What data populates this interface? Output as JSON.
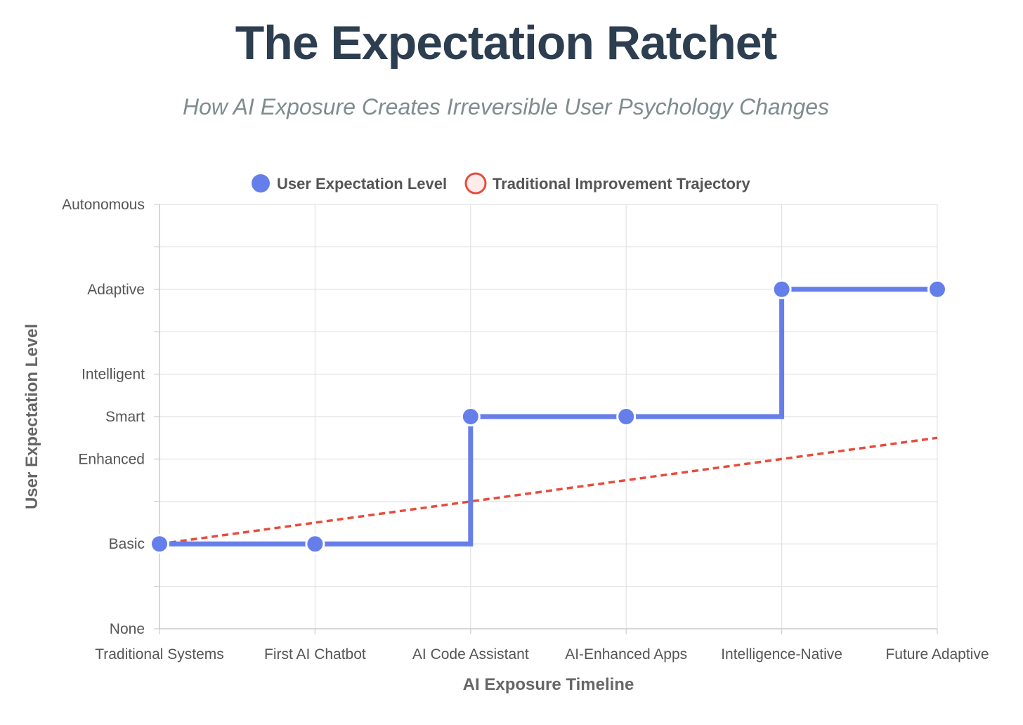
{
  "title": "The Expectation Ratchet",
  "subtitle": "How AI Exposure Creates Irreversible User Psychology Changes",
  "chart_data": {
    "type": "line",
    "categories": [
      "Traditional Systems",
      "First AI Chatbot",
      "AI Code Assistant",
      "AI-Enhanced Apps",
      "Intelligence-Native",
      "Future Adaptive"
    ],
    "x": [
      "Traditional Systems",
      "First AI Chatbot",
      "AI Code Assistant",
      "AI-Enhanced Apps",
      "Intelligence-Native",
      "Future Adaptive"
    ],
    "xlabel": "AI Exposure Timeline",
    "ylabel": "User Expectation Level",
    "ylim": [
      0,
      10
    ],
    "yticks": [
      {
        "value": 0,
        "label": "None"
      },
      {
        "value": 1,
        "label": ""
      },
      {
        "value": 2,
        "label": "Basic"
      },
      {
        "value": 3,
        "label": ""
      },
      {
        "value": 4,
        "label": "Enhanced"
      },
      {
        "value": 5,
        "label": "Smart"
      },
      {
        "value": 6,
        "label": "Intelligent"
      },
      {
        "value": 7,
        "label": ""
      },
      {
        "value": 8,
        "label": "Adaptive"
      },
      {
        "value": 9,
        "label": ""
      },
      {
        "value": 10,
        "label": "Autonomous"
      }
    ],
    "grid": true,
    "legend_position": "top-center",
    "series": [
      {
        "name": "User Expectation Level",
        "values": [
          2,
          2,
          5,
          5,
          8,
          8
        ],
        "color": "#667eea",
        "style": "stepped-solid",
        "marker": "filled-circle"
      },
      {
        "name": "Traditional Improvement Trajectory",
        "values": [
          2,
          2.5,
          3,
          3.5,
          4,
          4.5
        ],
        "color": "#e74c3c",
        "style": "dashed",
        "marker": "hollow-circle"
      }
    ]
  }
}
